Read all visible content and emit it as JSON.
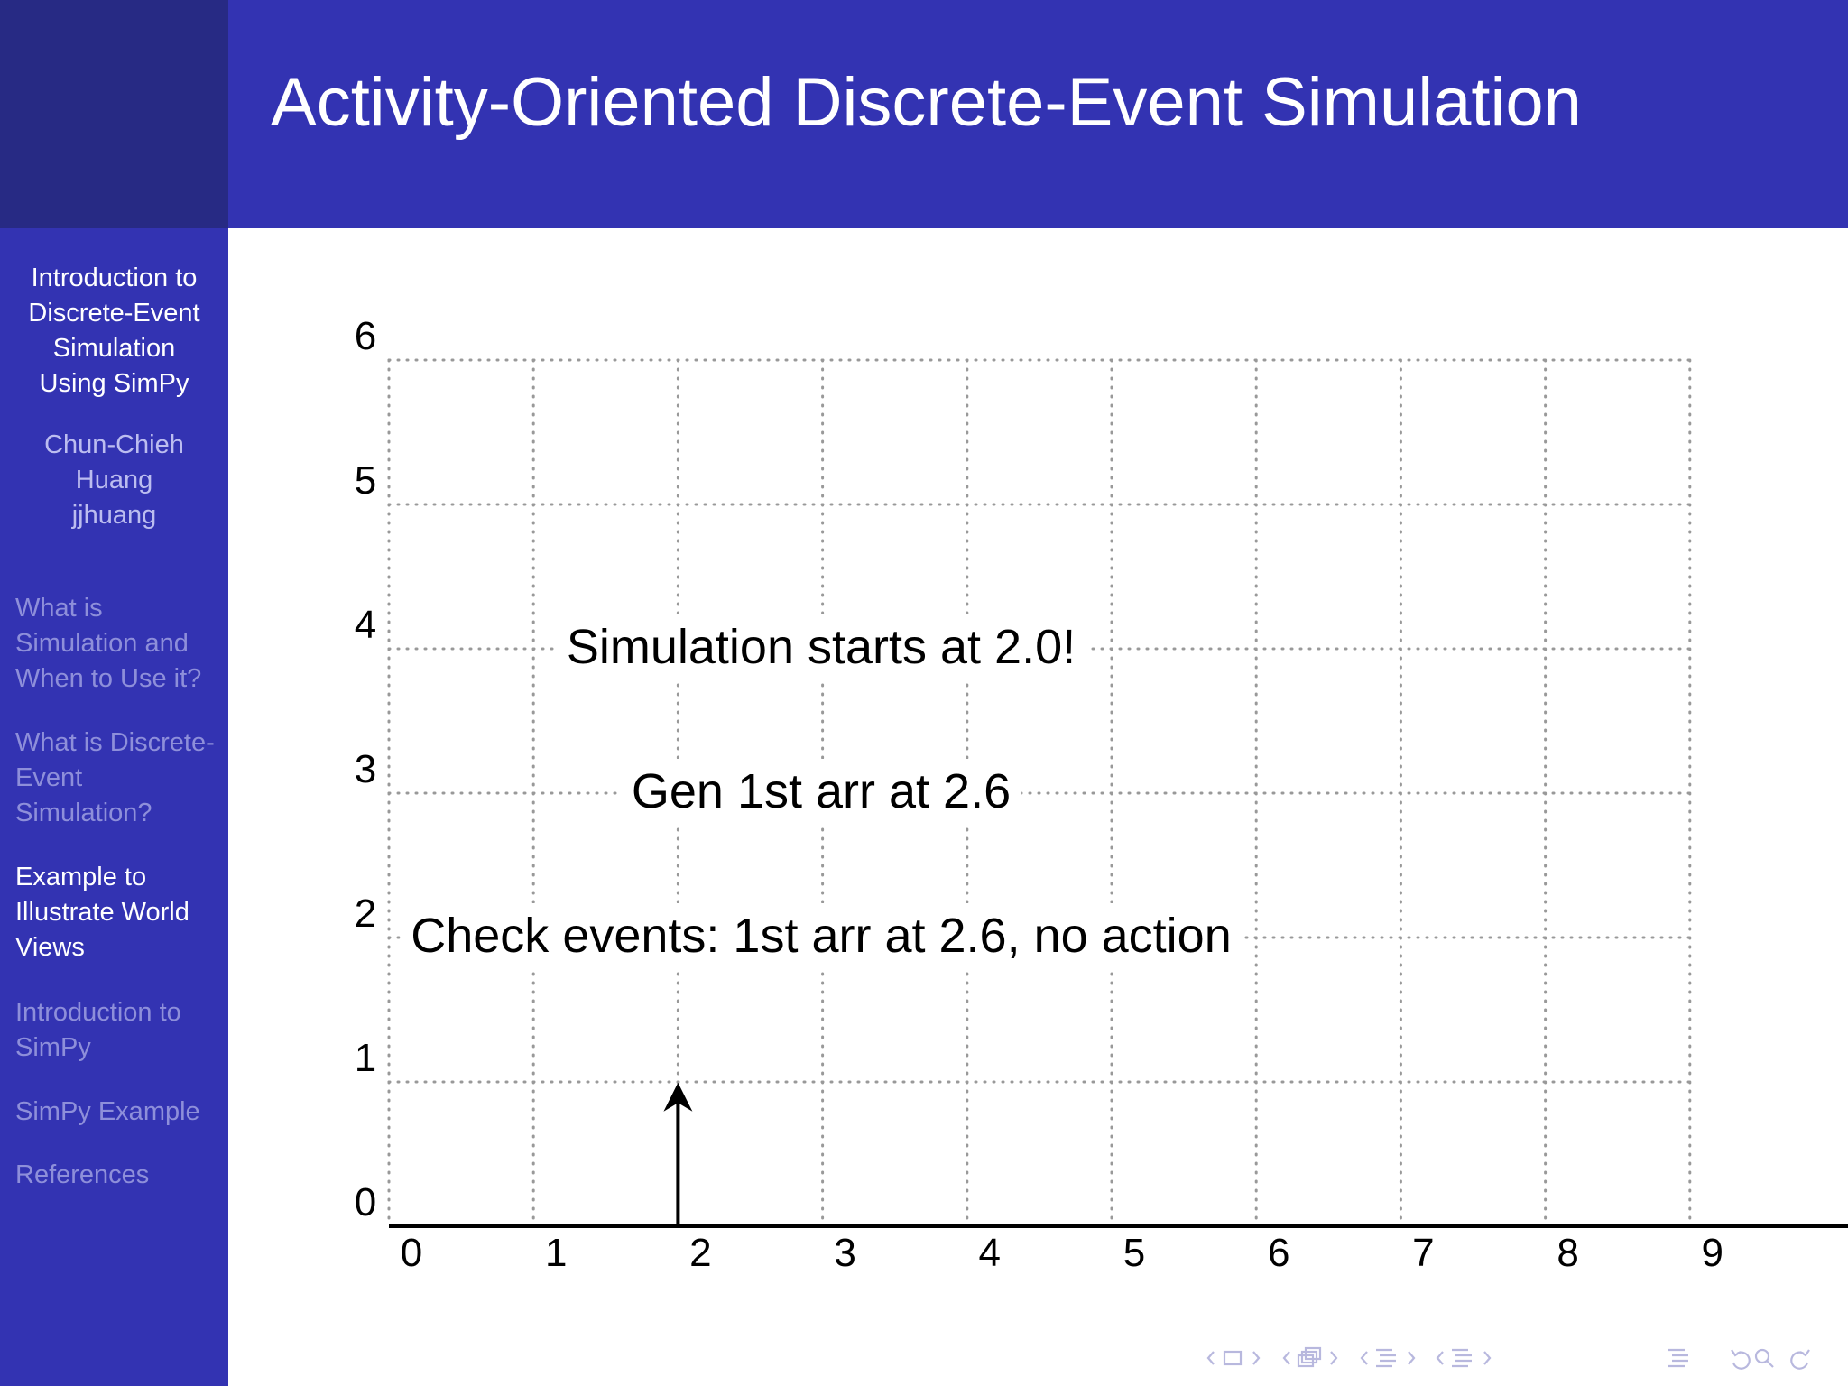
{
  "slide": {
    "title": "Activity-Oriented Discrete-Event Simulation"
  },
  "sidebar": {
    "presentation_title_lines": [
      "Introduction to",
      "Discrete-Event",
      "Simulation",
      "Using SimPy"
    ],
    "author_lines": [
      "Chun-Chieh",
      "Huang",
      "jjhuang"
    ],
    "sections": [
      {
        "label": "What is Simulation and When to Use it?",
        "active": false
      },
      {
        "label": "What is Discrete-Event Simulation?",
        "active": false
      },
      {
        "label": "Example to Illustrate World Views",
        "active": true
      },
      {
        "label": "Introduction to SimPy",
        "active": false
      },
      {
        "label": "SimPy Example",
        "active": false
      },
      {
        "label": "References",
        "active": false
      }
    ]
  },
  "chart_data": {
    "type": "line",
    "xlim": [
      0,
      9
    ],
    "ylim": [
      0,
      6
    ],
    "x_ticks": [
      "0",
      "1",
      "2",
      "3",
      "4",
      "5",
      "6",
      "7",
      "8",
      "9"
    ],
    "y_ticks": [
      "0",
      "1",
      "2",
      "3",
      "4",
      "5",
      "6"
    ],
    "grid": "dotted",
    "arrow": {
      "x": 2,
      "y_from": 0,
      "y_to": 1
    },
    "annotations": [
      {
        "text": "Simulation starts at 2.0!",
        "x": 2.9,
        "y": 4
      },
      {
        "text": "Gen 1st arr at 2.6",
        "x": 2.9,
        "y": 3
      },
      {
        "text": "Check events: 1st arr at 2.6, no action",
        "x": 2.9,
        "y": 2
      }
    ]
  },
  "colors": {
    "header": "#3333b2",
    "corner": "#272a84",
    "sidebar_active": "#ffffff",
    "sidebar_inactive": "#8e8fda"
  },
  "navigation": {
    "icons": [
      "frame-prev-icon",
      "frame-icon",
      "frame-next-icon",
      "subsection-prev-icon",
      "subsection-icon",
      "subsection-next-icon",
      "section-prev-icon",
      "section-icon",
      "section-next-icon",
      "doc-prev-icon",
      "doc-icon",
      "doc-next-icon",
      "outline-icon",
      "back-icon",
      "search-icon",
      "forward-icon"
    ]
  }
}
